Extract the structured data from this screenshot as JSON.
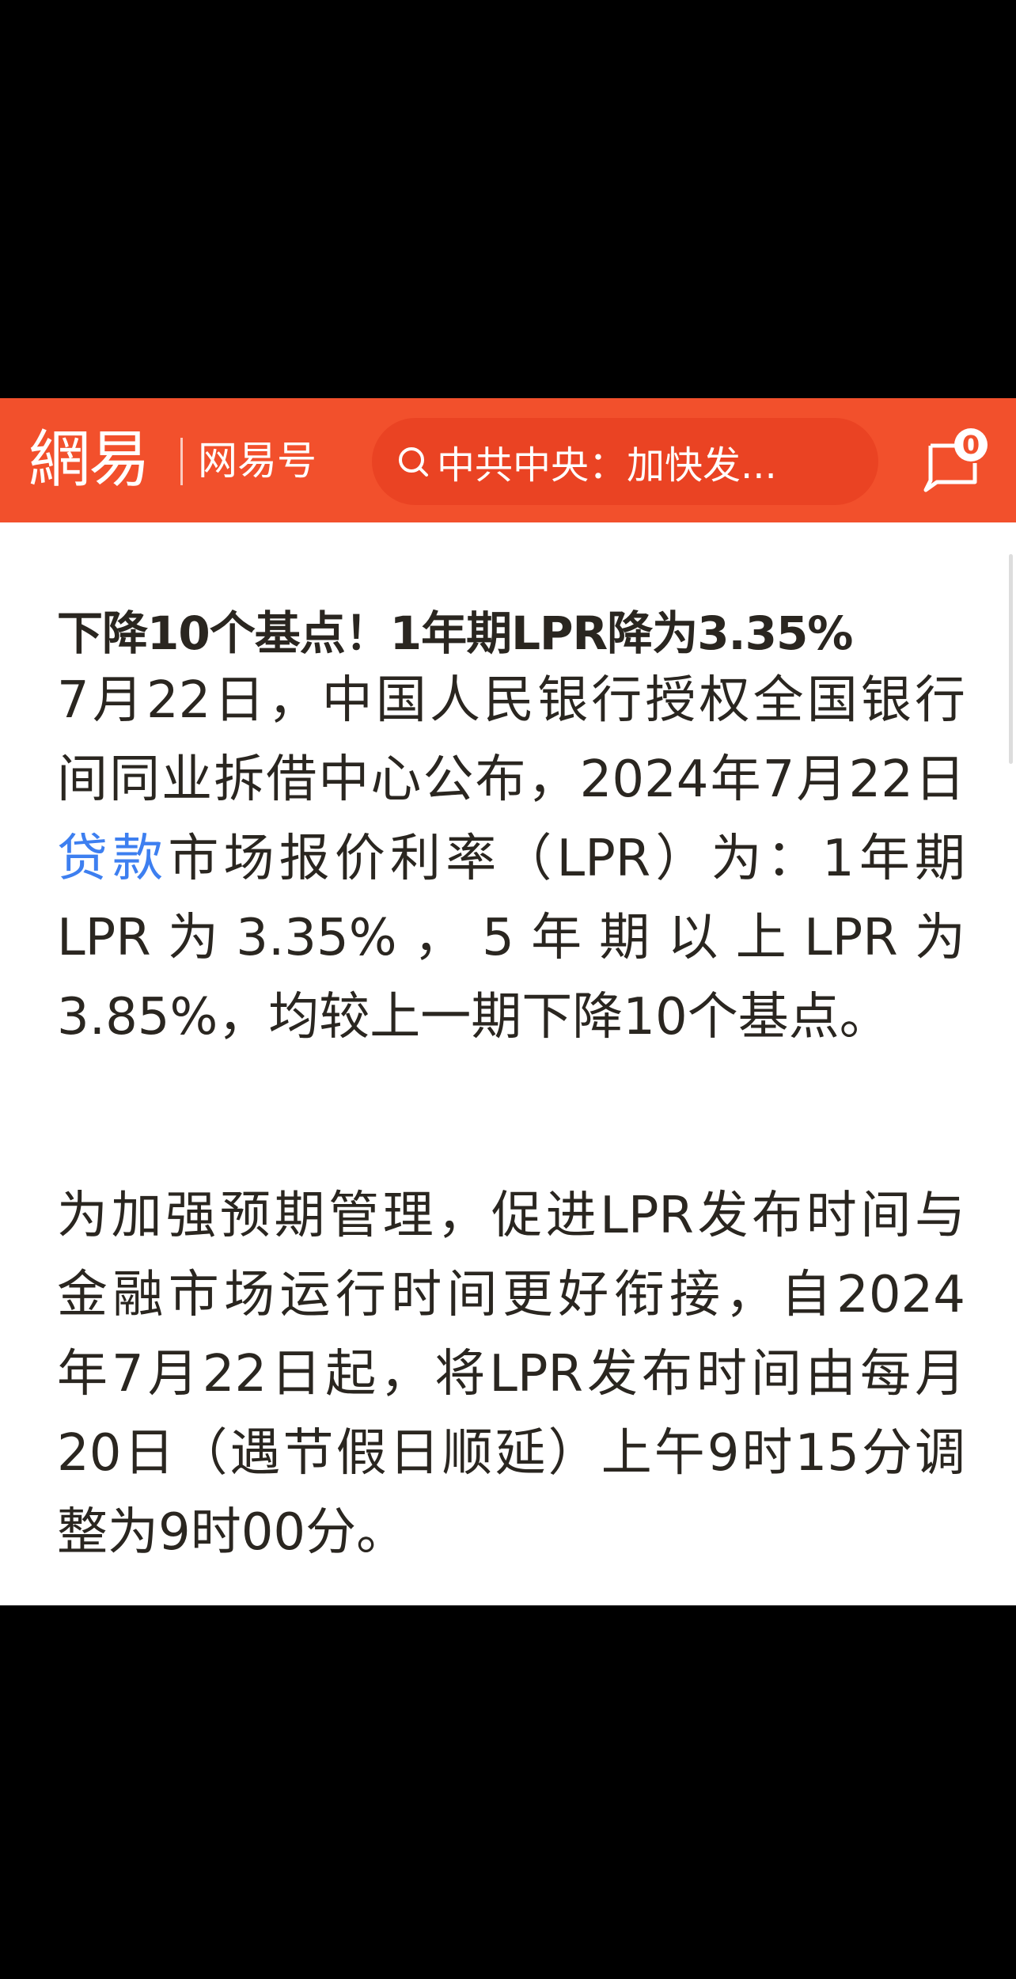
{
  "header": {
    "logo_text": "網易",
    "channel": "网易号",
    "search_text": "中共中央：加快发...",
    "message_count": "0",
    "brand_color": "#f2502c",
    "icons": [
      "search-icon",
      "message-icon"
    ]
  },
  "article": {
    "title": "下降10个基点！1年期LPR降为3.35%",
    "paragraphs": [
      {
        "lines": [
          "7月22日，中国人民银行授权全国银行",
          "间同业拆借中心公布，2024年7月22日",
          "市场报价利率（LPR）为：1年期",
          "LPR 为 3.35% ， 5 年 期 以 上 LPR 为",
          "3.85%，均较上一期下降10个基点。"
        ],
        "link_text": "贷款"
      },
      {
        "lines": [
          "为加强预期管理，促进LPR发布时间与",
          "金融市场运行时间更好衔接，自2024",
          "年7月22日起，将LPR发布时间由每月",
          "20日（遇节假日顺延）上午9时15分调",
          "整为9时00分。"
        ]
      }
    ],
    "link_color": "#3d7ff0"
  }
}
